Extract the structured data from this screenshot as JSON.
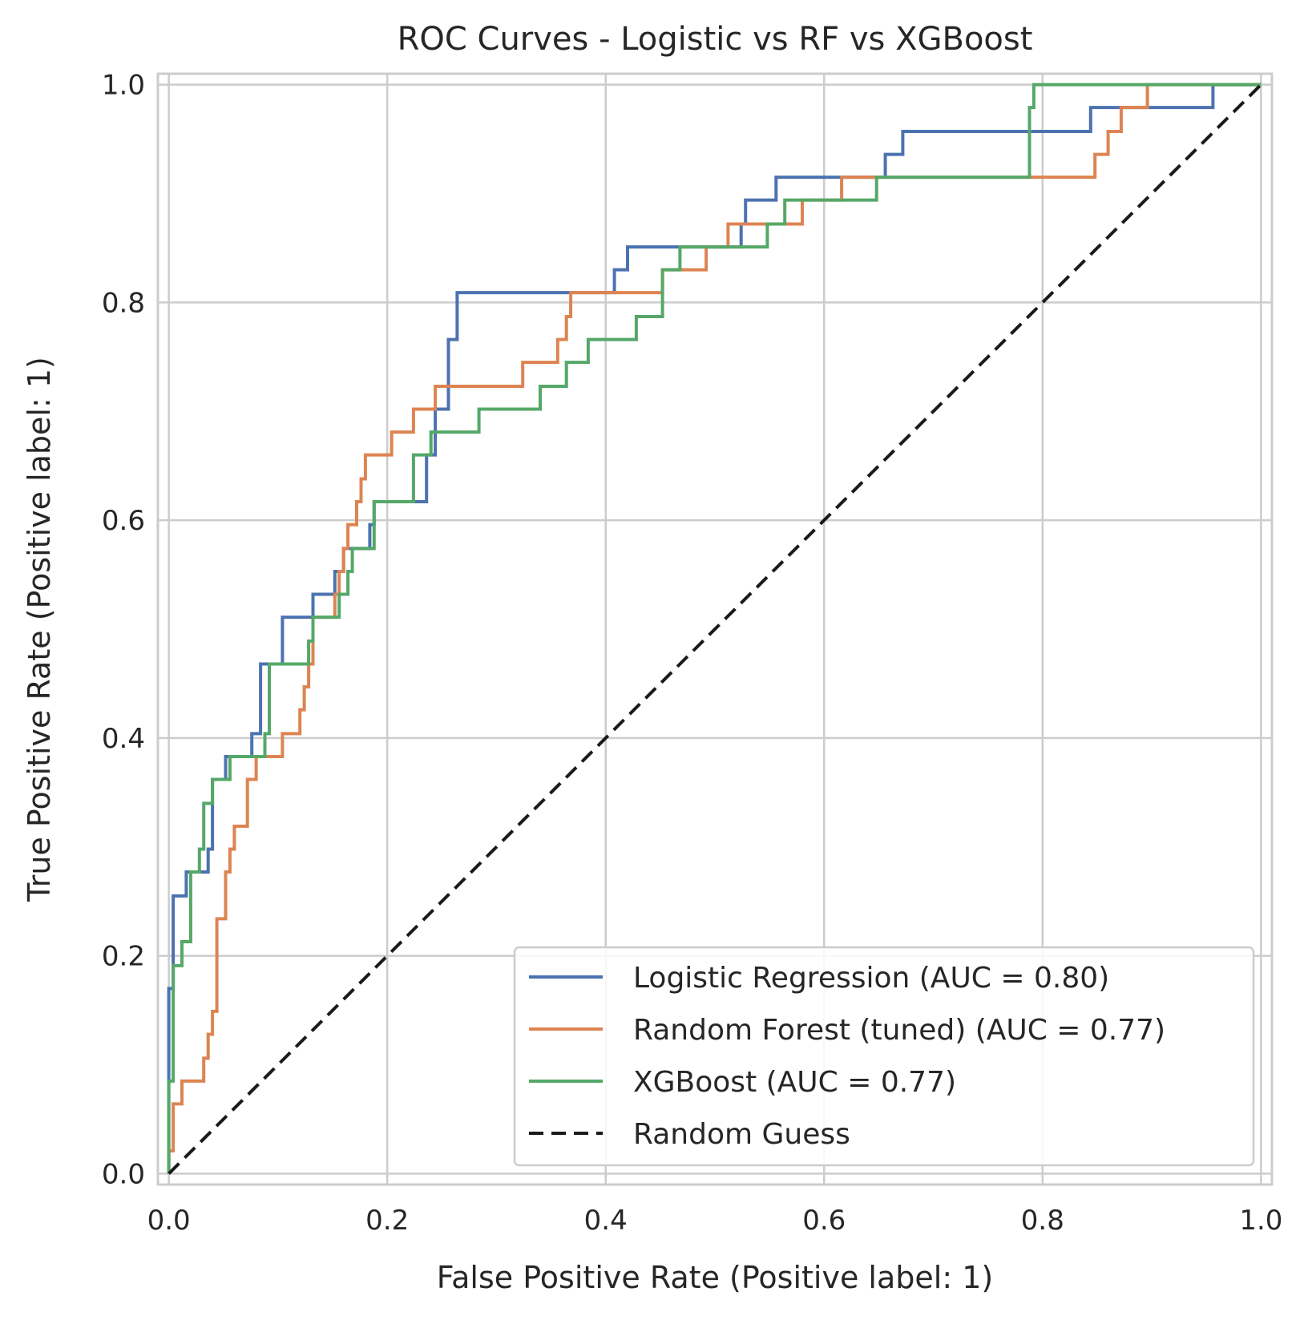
{
  "chart_data": {
    "type": "line",
    "title": "ROC Curves - Logistic vs RF vs XGBoost",
    "xlabel": "False Positive Rate (Positive label: 1)",
    "ylabel": "True Positive Rate (Positive label: 1)",
    "xlim": [
      -0.01,
      1.01
    ],
    "ylim": [
      -0.01,
      1.01
    ],
    "xticks": [
      0.0,
      0.2,
      0.4,
      0.6,
      0.8,
      1.0
    ],
    "yticks": [
      0.0,
      0.2,
      0.4,
      0.6,
      0.8,
      1.0
    ],
    "xtick_labels": [
      "0.0",
      "0.2",
      "0.4",
      "0.6",
      "0.8",
      "1.0"
    ],
    "ytick_labels": [
      "0.0",
      "0.2",
      "0.4",
      "0.6",
      "0.8",
      "1.0"
    ],
    "grid": true,
    "legend_position": "lower-right",
    "series": [
      {
        "name": "Logistic Regression (AUC = 0.80)",
        "color": "#4c72b0",
        "dash": "solid",
        "points": [
          [
            0.0,
            0.0
          ],
          [
            0.0,
            0.085
          ],
          [
            0.0,
            0.17
          ],
          [
            0.004,
            0.17
          ],
          [
            0.004,
            0.255
          ],
          [
            0.016,
            0.255
          ],
          [
            0.016,
            0.277
          ],
          [
            0.036,
            0.277
          ],
          [
            0.036,
            0.298
          ],
          [
            0.04,
            0.298
          ],
          [
            0.04,
            0.362
          ],
          [
            0.052,
            0.362
          ],
          [
            0.052,
            0.383
          ],
          [
            0.076,
            0.383
          ],
          [
            0.076,
            0.404
          ],
          [
            0.084,
            0.404
          ],
          [
            0.084,
            0.468
          ],
          [
            0.104,
            0.468
          ],
          [
            0.104,
            0.511
          ],
          [
            0.132,
            0.511
          ],
          [
            0.132,
            0.532
          ],
          [
            0.152,
            0.532
          ],
          [
            0.152,
            0.553
          ],
          [
            0.16,
            0.553
          ],
          [
            0.16,
            0.574
          ],
          [
            0.184,
            0.574
          ],
          [
            0.184,
            0.596
          ],
          [
            0.188,
            0.596
          ],
          [
            0.188,
            0.617
          ],
          [
            0.236,
            0.617
          ],
          [
            0.236,
            0.66
          ],
          [
            0.244,
            0.66
          ],
          [
            0.244,
            0.702
          ],
          [
            0.256,
            0.702
          ],
          [
            0.256,
            0.766
          ],
          [
            0.264,
            0.766
          ],
          [
            0.264,
            0.809
          ],
          [
            0.408,
            0.809
          ],
          [
            0.408,
            0.83
          ],
          [
            0.42,
            0.83
          ],
          [
            0.42,
            0.851
          ],
          [
            0.524,
            0.851
          ],
          [
            0.524,
            0.872
          ],
          [
            0.528,
            0.872
          ],
          [
            0.528,
            0.894
          ],
          [
            0.556,
            0.894
          ],
          [
            0.556,
            0.915
          ],
          [
            0.656,
            0.915
          ],
          [
            0.656,
            0.936
          ],
          [
            0.672,
            0.936
          ],
          [
            0.672,
            0.957
          ],
          [
            0.844,
            0.957
          ],
          [
            0.844,
            0.979
          ],
          [
            0.956,
            0.979
          ],
          [
            0.956,
            1.0
          ],
          [
            1.0,
            1.0
          ]
        ]
      },
      {
        "name": "Random Forest (tuned) (AUC = 0.77)",
        "color": "#dd8452",
        "dash": "solid",
        "points": [
          [
            0.0,
            0.0
          ],
          [
            0.0,
            0.021
          ],
          [
            0.004,
            0.021
          ],
          [
            0.004,
            0.064
          ],
          [
            0.012,
            0.064
          ],
          [
            0.012,
            0.085
          ],
          [
            0.032,
            0.085
          ],
          [
            0.032,
            0.106
          ],
          [
            0.036,
            0.106
          ],
          [
            0.036,
            0.128
          ],
          [
            0.04,
            0.128
          ],
          [
            0.04,
            0.149
          ],
          [
            0.044,
            0.149
          ],
          [
            0.044,
            0.234
          ],
          [
            0.052,
            0.234
          ],
          [
            0.052,
            0.277
          ],
          [
            0.056,
            0.277
          ],
          [
            0.056,
            0.298
          ],
          [
            0.06,
            0.298
          ],
          [
            0.06,
            0.319
          ],
          [
            0.072,
            0.319
          ],
          [
            0.072,
            0.362
          ],
          [
            0.08,
            0.362
          ],
          [
            0.08,
            0.383
          ],
          [
            0.104,
            0.383
          ],
          [
            0.104,
            0.404
          ],
          [
            0.12,
            0.404
          ],
          [
            0.12,
            0.426
          ],
          [
            0.124,
            0.426
          ],
          [
            0.124,
            0.447
          ],
          [
            0.128,
            0.447
          ],
          [
            0.128,
            0.468
          ],
          [
            0.132,
            0.468
          ],
          [
            0.132,
            0.511
          ],
          [
            0.152,
            0.511
          ],
          [
            0.152,
            0.532
          ],
          [
            0.156,
            0.532
          ],
          [
            0.156,
            0.553
          ],
          [
            0.16,
            0.553
          ],
          [
            0.16,
            0.574
          ],
          [
            0.164,
            0.574
          ],
          [
            0.164,
            0.596
          ],
          [
            0.172,
            0.596
          ],
          [
            0.172,
            0.617
          ],
          [
            0.176,
            0.617
          ],
          [
            0.176,
            0.638
          ],
          [
            0.18,
            0.638
          ],
          [
            0.18,
            0.66
          ],
          [
            0.204,
            0.66
          ],
          [
            0.204,
            0.681
          ],
          [
            0.224,
            0.681
          ],
          [
            0.224,
            0.702
          ],
          [
            0.244,
            0.702
          ],
          [
            0.244,
            0.723
          ],
          [
            0.324,
            0.723
          ],
          [
            0.324,
            0.745
          ],
          [
            0.356,
            0.745
          ],
          [
            0.356,
            0.766
          ],
          [
            0.364,
            0.766
          ],
          [
            0.364,
            0.787
          ],
          [
            0.368,
            0.787
          ],
          [
            0.368,
            0.809
          ],
          [
            0.452,
            0.809
          ],
          [
            0.452,
            0.83
          ],
          [
            0.492,
            0.83
          ],
          [
            0.492,
            0.851
          ],
          [
            0.512,
            0.851
          ],
          [
            0.512,
            0.872
          ],
          [
            0.58,
            0.872
          ],
          [
            0.58,
            0.894
          ],
          [
            0.616,
            0.894
          ],
          [
            0.616,
            0.915
          ],
          [
            0.848,
            0.915
          ],
          [
            0.848,
            0.936
          ],
          [
            0.86,
            0.936
          ],
          [
            0.86,
            0.957
          ],
          [
            0.872,
            0.957
          ],
          [
            0.872,
            0.979
          ],
          [
            0.896,
            0.979
          ],
          [
            0.896,
            1.0
          ],
          [
            1.0,
            1.0
          ]
        ]
      },
      {
        "name": "XGBoost (AUC = 0.77)",
        "color": "#55a868",
        "dash": "solid",
        "points": [
          [
            0.0,
            0.0
          ],
          [
            0.0,
            0.085
          ],
          [
            0.004,
            0.085
          ],
          [
            0.004,
            0.191
          ],
          [
            0.012,
            0.191
          ],
          [
            0.012,
            0.213
          ],
          [
            0.02,
            0.213
          ],
          [
            0.02,
            0.277
          ],
          [
            0.028,
            0.277
          ],
          [
            0.028,
            0.298
          ],
          [
            0.032,
            0.298
          ],
          [
            0.032,
            0.34
          ],
          [
            0.04,
            0.34
          ],
          [
            0.04,
            0.362
          ],
          [
            0.056,
            0.362
          ],
          [
            0.056,
            0.383
          ],
          [
            0.088,
            0.383
          ],
          [
            0.088,
            0.404
          ],
          [
            0.092,
            0.404
          ],
          [
            0.092,
            0.468
          ],
          [
            0.128,
            0.468
          ],
          [
            0.128,
            0.489
          ],
          [
            0.132,
            0.489
          ],
          [
            0.132,
            0.511
          ],
          [
            0.156,
            0.511
          ],
          [
            0.156,
            0.532
          ],
          [
            0.164,
            0.532
          ],
          [
            0.164,
            0.553
          ],
          [
            0.168,
            0.553
          ],
          [
            0.168,
            0.574
          ],
          [
            0.188,
            0.574
          ],
          [
            0.188,
            0.617
          ],
          [
            0.224,
            0.617
          ],
          [
            0.224,
            0.66
          ],
          [
            0.24,
            0.66
          ],
          [
            0.24,
            0.681
          ],
          [
            0.284,
            0.681
          ],
          [
            0.284,
            0.702
          ],
          [
            0.34,
            0.702
          ],
          [
            0.34,
            0.723
          ],
          [
            0.364,
            0.723
          ],
          [
            0.364,
            0.745
          ],
          [
            0.384,
            0.745
          ],
          [
            0.384,
            0.766
          ],
          [
            0.428,
            0.766
          ],
          [
            0.428,
            0.787
          ],
          [
            0.452,
            0.787
          ],
          [
            0.452,
            0.83
          ],
          [
            0.468,
            0.83
          ],
          [
            0.468,
            0.851
          ],
          [
            0.548,
            0.851
          ],
          [
            0.548,
            0.872
          ],
          [
            0.564,
            0.872
          ],
          [
            0.564,
            0.894
          ],
          [
            0.648,
            0.894
          ],
          [
            0.648,
            0.915
          ],
          [
            0.788,
            0.915
          ],
          [
            0.788,
            0.979
          ],
          [
            0.792,
            0.979
          ],
          [
            0.792,
            1.0
          ],
          [
            1.0,
            1.0
          ]
        ]
      },
      {
        "name": "Random Guess",
        "color": "#1a1a1a",
        "dash": "dashed",
        "points": [
          [
            0.0,
            0.0
          ],
          [
            1.0,
            1.0
          ]
        ]
      }
    ]
  }
}
